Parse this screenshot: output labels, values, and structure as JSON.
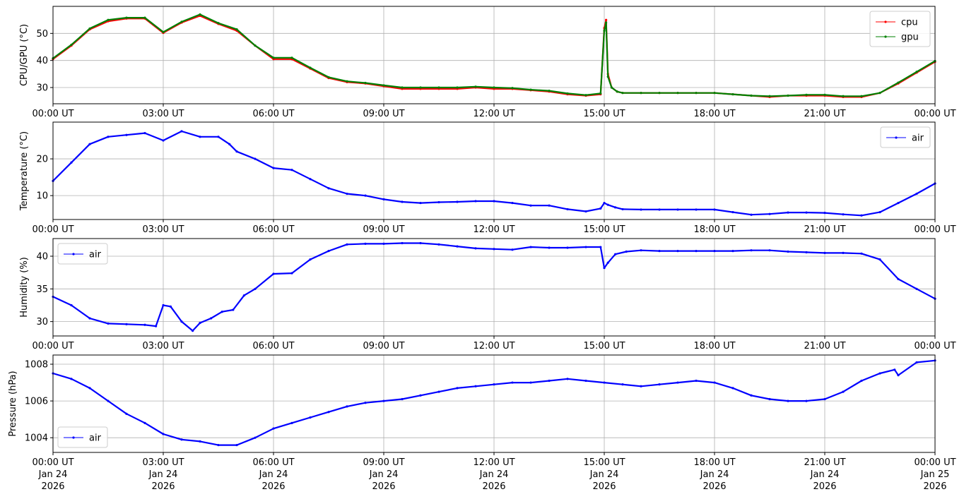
{
  "chart_data": [
    {
      "type": "line",
      "ylabel": "CPU/GPU (°C)",
      "xlim": [
        0,
        24
      ],
      "ylim": [
        24,
        60
      ],
      "yticks": [
        30,
        40,
        50
      ],
      "grid": true,
      "legend": "top-right",
      "series": [
        {
          "name": "cpu",
          "color": "#ff0000",
          "x": [
            0,
            0.5,
            1,
            1.5,
            2,
            2.5,
            3,
            3.5,
            4,
            4.5,
            5,
            5.5,
            6,
            6.5,
            7,
            7.5,
            8,
            8.5,
            9,
            9.5,
            10,
            10.5,
            11,
            11.5,
            12,
            12.5,
            13,
            13.5,
            14,
            14.5,
            14.9,
            15,
            15.05,
            15.1,
            15.2,
            15.35,
            15.5,
            16,
            16.5,
            17,
            17.5,
            18,
            18.5,
            19,
            19.5,
            20,
            20.5,
            21,
            21.5,
            22,
            22.5,
            23,
            23.5,
            24
          ],
          "y": [
            40.5,
            45.5,
            51.5,
            54.5,
            55.5,
            55.5,
            50.2,
            54,
            56.5,
            53.5,
            51,
            45.5,
            40.5,
            40.5,
            37,
            33.5,
            32,
            31.5,
            30.5,
            29.5,
            29.5,
            29.5,
            29.5,
            30,
            29.5,
            29.5,
            29,
            28.5,
            27.5,
            27,
            27.5,
            52,
            55,
            35,
            30,
            28.5,
            28,
            28,
            28,
            28,
            28,
            28,
            27.5,
            27,
            26.5,
            27,
            27,
            27,
            26.5,
            26.5,
            28,
            31.5,
            35.5,
            39.5
          ]
        },
        {
          "name": "gpu",
          "color": "#008000",
          "x": [
            0,
            0.5,
            1,
            1.5,
            2,
            2.5,
            3,
            3.5,
            4,
            4.5,
            5,
            5.5,
            6,
            6.5,
            7,
            7.5,
            8,
            8.5,
            9,
            9.5,
            10,
            10.5,
            11,
            11.5,
            12,
            12.5,
            13,
            13.5,
            14,
            14.5,
            14.9,
            15,
            15.05,
            15.1,
            15.2,
            15.35,
            15.5,
            16,
            16.5,
            17,
            17.5,
            18,
            18.5,
            19,
            19.5,
            20,
            20.5,
            21,
            21.5,
            22,
            22.5,
            23,
            23.5,
            24
          ],
          "y": [
            40.8,
            45.8,
            51.8,
            55,
            55.8,
            55.8,
            50.5,
            54.3,
            57,
            53.8,
            51.5,
            45.5,
            41,
            41,
            37.3,
            33.8,
            32.3,
            31.7,
            30.8,
            30,
            30,
            30,
            30,
            30.3,
            30,
            29.8,
            29.2,
            28.8,
            27.8,
            27.2,
            27.8,
            51,
            54,
            34,
            30,
            28.5,
            28,
            28,
            28,
            28,
            28,
            28,
            27.5,
            27,
            26.8,
            27,
            27.3,
            27.3,
            26.8,
            26.8,
            28,
            31.8,
            35.8,
            39.8
          ]
        }
      ]
    },
    {
      "type": "line",
      "ylabel": "Temperature (°C)",
      "xlim": [
        0,
        24
      ],
      "ylim": [
        3.5,
        30
      ],
      "yticks": [
        10,
        20
      ],
      "grid": true,
      "legend": "top-right",
      "series": [
        {
          "name": "air",
          "color": "#0000ff",
          "x": [
            0,
            0.5,
            1,
            1.5,
            2,
            2.5,
            3,
            3.5,
            4,
            4.5,
            4.8,
            5,
            5.5,
            6,
            6.5,
            7,
            7.5,
            8,
            8.5,
            9,
            9.5,
            10,
            10.5,
            11,
            11.5,
            12,
            12.5,
            13,
            13.5,
            14,
            14.5,
            14.9,
            15,
            15.1,
            15.3,
            15.5,
            16,
            16.5,
            17,
            17.5,
            18,
            18.5,
            19,
            19.5,
            20,
            20.5,
            21,
            21.5,
            22,
            22.5,
            23,
            23.5,
            24
          ],
          "y": [
            14,
            19,
            24,
            26,
            26.5,
            27,
            25,
            27.5,
            26,
            26,
            24,
            22,
            20,
            17.5,
            17,
            14.5,
            12,
            10.5,
            10,
            9,
            8.3,
            8,
            8.2,
            8.3,
            8.5,
            8.5,
            8,
            7.3,
            7.3,
            6.3,
            5.7,
            6.5,
            8,
            7.5,
            6.8,
            6.3,
            6.2,
            6.2,
            6.2,
            6.2,
            6.2,
            5.5,
            4.8,
            5,
            5.4,
            5.4,
            5.3,
            4.9,
            4.6,
            5.5,
            8,
            10.5,
            13.3
          ]
        }
      ]
    },
    {
      "type": "line",
      "ylabel": "Humidity (%)",
      "xlim": [
        0,
        24
      ],
      "ylim": [
        27.8,
        42.7
      ],
      "yticks": [
        30,
        35,
        40
      ],
      "grid": true,
      "legend": "top-left",
      "series": [
        {
          "name": "air",
          "color": "#0000ff",
          "x": [
            0,
            0.5,
            1,
            1.5,
            2,
            2.5,
            2.8,
            3,
            3.2,
            3.5,
            3.8,
            4,
            4.3,
            4.6,
            4.9,
            5.2,
            5.5,
            6,
            6.5,
            7,
            7.5,
            8,
            8.5,
            9,
            9.5,
            10,
            10.5,
            11,
            11.5,
            12,
            12.5,
            13,
            13.5,
            14,
            14.5,
            14.9,
            15,
            15.1,
            15.3,
            15.6,
            16,
            16.5,
            17,
            17.5,
            18,
            18.5,
            19,
            19.5,
            20,
            20.5,
            21,
            21.5,
            22,
            22.5,
            23,
            23.5,
            24
          ],
          "y": [
            33.8,
            32.5,
            30.5,
            29.7,
            29.6,
            29.5,
            29.3,
            32.5,
            32.3,
            30,
            28.6,
            29.8,
            30.5,
            31.5,
            31.8,
            34,
            35,
            37.3,
            37.4,
            39.5,
            40.8,
            41.8,
            41.9,
            41.9,
            42,
            42,
            41.8,
            41.5,
            41.2,
            41.1,
            41,
            41.4,
            41.3,
            41.3,
            41.4,
            41.4,
            38.2,
            39,
            40.3,
            40.7,
            40.9,
            40.8,
            40.8,
            40.8,
            40.8,
            40.8,
            40.9,
            40.9,
            40.7,
            40.6,
            40.5,
            40.5,
            40.4,
            39.5,
            36.5,
            35,
            33.5
          ]
        }
      ]
    },
    {
      "type": "line",
      "ylabel": "Pressure (hPa)",
      "xlim": [
        0,
        24
      ],
      "ylim": [
        1003.2,
        1008.5
      ],
      "yticks": [
        1004,
        1006,
        1008
      ],
      "xticks": [
        0,
        3,
        6,
        9,
        12,
        15,
        18,
        21,
        24
      ],
      "grid": true,
      "legend": "bottom-left",
      "series": [
        {
          "name": "air",
          "color": "#0000ff",
          "x": [
            0,
            0.5,
            1,
            1.5,
            2,
            2.5,
            3,
            3.5,
            4,
            4.5,
            5,
            5.5,
            6,
            6.5,
            7,
            7.5,
            8,
            8.5,
            9,
            9.5,
            10,
            10.5,
            11,
            11.5,
            12,
            12.5,
            13,
            13.5,
            14,
            14.5,
            15,
            15.5,
            16,
            16.5,
            17,
            17.5,
            18,
            18.5,
            19,
            19.5,
            20,
            20.5,
            21,
            21.5,
            22,
            22.5,
            22.9,
            23,
            23.5,
            24
          ],
          "y": [
            1007.5,
            1007.2,
            1006.7,
            1006,
            1005.3,
            1004.8,
            1004.2,
            1003.9,
            1003.8,
            1003.6,
            1003.6,
            1004,
            1004.5,
            1004.8,
            1005.1,
            1005.4,
            1005.7,
            1005.9,
            1006,
            1006.1,
            1006.3,
            1006.5,
            1006.7,
            1006.8,
            1006.9,
            1007,
            1007,
            1007.1,
            1007.2,
            1007.1,
            1007,
            1006.9,
            1006.8,
            1006.9,
            1007,
            1007.1,
            1007,
            1006.7,
            1006.3,
            1006.1,
            1006,
            1006,
            1006.1,
            1006.5,
            1007.1,
            1007.5,
            1007.7,
            1007.4,
            1008.1,
            1008.2
          ]
        }
      ]
    }
  ],
  "x_tick_labels": [
    "00:00 UT",
    "03:00 UT",
    "06:00 UT",
    "09:00 UT",
    "12:00 UT",
    "15:00 UT",
    "18:00 UT",
    "21:00 UT",
    "00:00 UT"
  ],
  "x_tick_dates": [
    "Jan 24",
    "Jan 24",
    "Jan 24",
    "Jan 24",
    "Jan 24",
    "Jan 24",
    "Jan 24",
    "Jan 24",
    "Jan 25"
  ],
  "x_tick_years": [
    "2026",
    "2026",
    "2026",
    "2026",
    "2026",
    "2026",
    "2026",
    "2026",
    "2026"
  ]
}
